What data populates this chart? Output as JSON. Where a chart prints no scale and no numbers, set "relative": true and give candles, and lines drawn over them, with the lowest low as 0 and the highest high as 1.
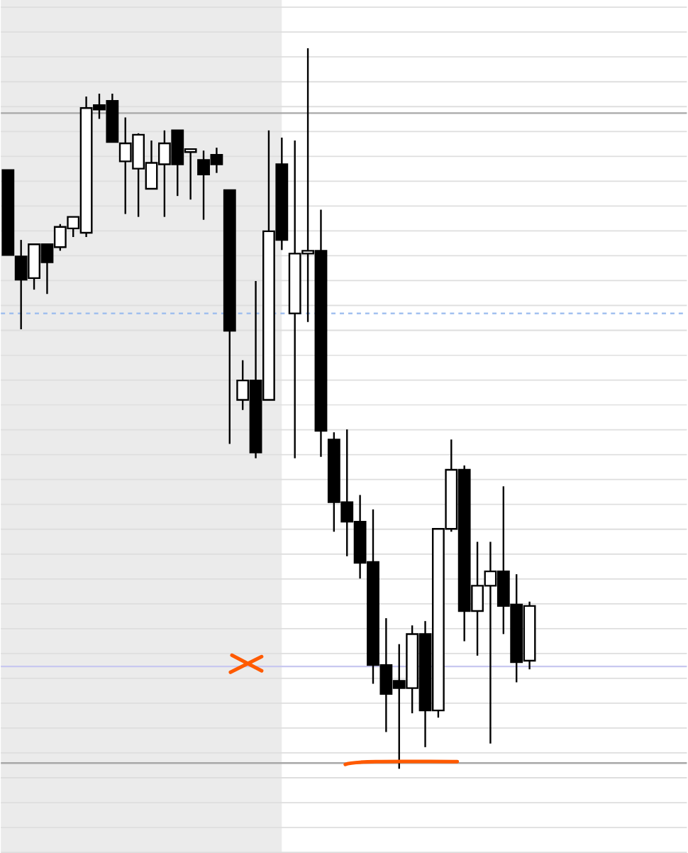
{
  "chart_data": {
    "type": "candlestick",
    "relative": true,
    "color": "#000000",
    "grid": "y",
    "categories": [
      null,
      null,
      null,
      null,
      null,
      null,
      null,
      null,
      null,
      null,
      null,
      null,
      null,
      null,
      null,
      null,
      null,
      null,
      null,
      null,
      null,
      null,
      null,
      null,
      null,
      null,
      null,
      null,
      null,
      null,
      null,
      null,
      null,
      null,
      null,
      null,
      null,
      null,
      null,
      null,
      null
    ],
    "ohlc": [
      [
        0.831,
        0.831,
        0.713,
        0.713
      ],
      [
        0.711,
        0.734,
        0.61,
        0.679
      ],
      [
        0.681,
        0.728,
        0.665,
        0.728
      ],
      [
        0.728,
        0.728,
        0.659,
        0.703
      ],
      [
        0.724,
        0.756,
        0.719,
        0.752
      ],
      [
        0.75,
        0.766,
        0.738,
        0.766
      ],
      [
        0.744,
        0.933,
        0.738,
        0.917
      ],
      [
        0.921,
        0.937,
        0.902,
        0.915
      ],
      [
        0.927,
        0.937,
        0.87,
        0.87
      ],
      [
        0.843,
        0.904,
        0.77,
        0.868
      ],
      [
        0.833,
        0.882,
        0.766,
        0.88
      ],
      [
        0.805,
        0.872,
        0.805,
        0.841
      ],
      [
        0.839,
        0.886,
        0.766,
        0.868
      ],
      [
        0.886,
        0.886,
        0.795,
        0.839
      ],
      [
        0.858,
        0.858,
        0.79,
        0.858
      ],
      [
        0.845,
        0.858,
        0.762,
        0.825
      ],
      [
        0.852,
        0.862,
        0.827,
        0.839
      ],
      [
        0.803,
        0.803,
        0.451,
        0.608
      ],
      [
        0.512,
        0.567,
        0.498,
        0.539
      ],
      [
        0.539,
        0.677,
        0.431,
        0.439
      ],
      [
        0.512,
        0.886,
        0.512,
        0.746
      ],
      [
        0.839,
        0.876,
        0.72,
        0.734
      ],
      [
        0.632,
        0.872,
        0.431,
        0.715
      ],
      [
        0.715,
        1,
        0.62,
        0.719
      ],
      [
        0.719,
        0.776,
        0.433,
        0.469
      ],
      [
        0.457,
        0.467,
        0.329,
        0.37
      ],
      [
        0.37,
        0.471,
        0.295,
        0.343
      ],
      [
        0.343,
        0.38,
        0.264,
        0.286
      ],
      [
        0.287,
        0.36,
        0.118,
        0.144
      ],
      [
        0.144,
        0.209,
        0.051,
        0.104
      ],
      [
        0.122,
        0.173,
        0,
        0.112
      ],
      [
        0.112,
        0.199,
        0.077,
        0.187
      ],
      [
        0.187,
        0.205,
        0.03,
        0.081
      ],
      [
        0.081,
        0.333,
        0.071,
        0.333
      ],
      [
        0.333,
        0.457,
        0.329,
        0.415
      ],
      [
        0.415,
        0.421,
        0.177,
        0.219
      ],
      [
        0.219,
        0.315,
        0.157,
        0.254
      ],
      [
        0.254,
        0.315,
        0.035,
        0.274
      ],
      [
        0.274,
        0.392,
        0.187,
        0.226
      ],
      [
        0.228,
        0.27,
        0.12,
        0.148
      ],
      [
        0.15,
        0.232,
        0.138,
        0.226
      ]
    ],
    "ref_lines": [
      {
        "axis": "y",
        "value": 0.91,
        "color": "#a8a8a8"
      },
      {
        "axis": "y",
        "value": 0.008,
        "color": "#a8a8a8"
      },
      {
        "axis": "y",
        "value": 0.142,
        "color": "#c8c8f0"
      },
      {
        "axis": "y",
        "value": 0.632,
        "color": "#99bbee",
        "line_style": "dashed"
      }
    ]
  }
}
